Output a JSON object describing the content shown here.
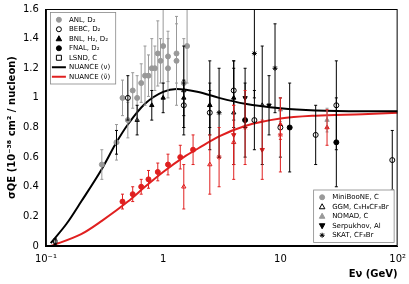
{
  "chart_data": {
    "type": "scatter",
    "x_label": "Eν (GeV)",
    "y_label": "σQE (10⁻³⁸ cm² / nucleon)",
    "log": "x",
    "grid": false,
    "legend": "upper left",
    "xlim": [
      0.1,
      100
    ],
    "xticks": [
      {
        "value": 0.1,
        "label": "10⁻¹"
      },
      1,
      10,
      {
        "value": 100,
        "label": "10²"
      }
    ],
    "ylim": [
      0,
      1.6
    ],
    "yticks": [
      0,
      0.2,
      0.4,
      0.6,
      0.8,
      1,
      1.2,
      1.4,
      1.6
    ],
    "series": [
      {
        "name": "ANL, D₂",
        "color": "#999999",
        "marker": "circle",
        "x": [
          0.3,
          0.4,
          0.5,
          0.6,
          0.7,
          0.8,
          0.9,
          1.0,
          1.1,
          1.3,
          1.5
        ],
        "values": [
          0.55,
          0.7,
          0.85,
          1.0,
          1.15,
          1.2,
          1.3,
          1.35,
          1.2,
          1.25,
          1.1
        ],
        "errors": [
          0.1,
          0.12,
          0.12,
          0.15,
          0.2,
          0.2,
          0.22,
          0.25,
          0.2,
          0.3,
          0.3
        ]
      },
      {
        "name": "BEBC, D₂",
        "color": "#000000",
        "marker": "open_circle",
        "x": [
          0.5,
          1.5,
          2.5,
          4,
          6,
          10,
          20,
          30,
          90
        ],
        "values": [
          1.0,
          0.95,
          0.9,
          1.05,
          0.85,
          0.8,
          0.75,
          0.95,
          0.58
        ],
        "errors": [
          0.15,
          0.15,
          0.15,
          0.2,
          0.2,
          0.2,
          0.2,
          0.3,
          0.2
        ]
      },
      {
        "name": "BNL, H₂, D₂",
        "color": "#000000",
        "marker": "triangle",
        "x": [
          0.4,
          0.6,
          0.8,
          1.0,
          1.5,
          2.5,
          4
        ],
        "values": [
          0.7,
          0.85,
          0.95,
          1.0,
          1.0,
          0.95,
          1.0
        ],
        "errors": [
          0.08,
          0.1,
          0.1,
          0.1,
          0.12,
          0.15,
          0.2
        ]
      },
      {
        "name": "FNAL, D₂",
        "color": "#000000",
        "marker": "circle",
        "x": [
          5,
          12,
          30
        ],
        "values": [
          0.85,
          0.8,
          0.7
        ],
        "errors": [
          0.25,
          0.3,
          0.3
        ]
      },
      {
        "name": "LSND, C",
        "color": "#000000",
        "marker": "open_square",
        "x": [
          0.12
        ],
        "values": [
          0.03
        ],
        "errors": [
          0.02
        ]
      },
      {
        "name": "NUANCE (ν)",
        "color": "#000000",
        "type": "line",
        "line_style": "solid",
        "x": [
          0.11,
          0.15,
          0.2,
          0.3,
          0.4,
          0.5,
          0.7,
          1,
          1.3,
          2,
          3,
          5,
          10,
          20,
          50,
          100
        ],
        "values": [
          0.02,
          0.15,
          0.3,
          0.52,
          0.7,
          0.82,
          0.96,
          1.04,
          1.06,
          1.04,
          1.0,
          0.96,
          0.93,
          0.915,
          0.91,
          0.91
        ]
      },
      {
        "name": "NUANCE (ν̄)",
        "color": "#e02020",
        "type": "line",
        "line_style": "solid",
        "x": [
          0.11,
          0.2,
          0.3,
          0.5,
          0.7,
          1,
          1.5,
          2,
          3,
          5,
          10,
          20,
          50,
          100
        ],
        "values": [
          0.0,
          0.08,
          0.17,
          0.3,
          0.4,
          0.5,
          0.6,
          0.66,
          0.74,
          0.81,
          0.86,
          0.88,
          0.89,
          0.9
        ]
      },
      {
        "name": "MiniBooNE, C",
        "color": "#999999",
        "marker": "circle",
        "x": [
          0.45,
          0.55,
          0.65,
          0.75,
          0.85,
          0.95,
          1.1,
          1.3,
          1.6
        ],
        "values": [
          1.0,
          1.05,
          1.1,
          1.15,
          1.2,
          1.25,
          1.28,
          1.3,
          1.35
        ],
        "errors": [
          0.12,
          0.12,
          0.13,
          0.14,
          0.15,
          0.15,
          0.17,
          0.2,
          0.25
        ]
      },
      {
        "name": "MiniBooNE, C",
        "color": "#e02020",
        "marker": "circle",
        "x": [
          0.45,
          0.55,
          0.65,
          0.75,
          0.9,
          1.1,
          1.4,
          1.8
        ],
        "values": [
          0.3,
          0.35,
          0.4,
          0.45,
          0.5,
          0.55,
          0.6,
          0.65
        ],
        "errors": [
          0.05,
          0.05,
          0.05,
          0.06,
          0.06,
          0.07,
          0.08,
          0.1
        ]
      },
      {
        "name": "GGM, C₃H₈CF₃Br",
        "color": "#000000",
        "marker": "open_triangle",
        "x": [
          1.5,
          2.5,
          4,
          7
        ],
        "values": [
          1.05,
          0.95,
          0.9,
          0.95
        ],
        "errors": [
          0.3,
          0.3,
          0.35,
          0.4
        ]
      },
      {
        "name": "GGM, C₃H₈CF₃Br",
        "color": "#e02020",
        "marker": "open_triangle",
        "x": [
          1.5,
          2.5,
          4
        ],
        "values": [
          0.4,
          0.55,
          0.7
        ],
        "errors": [
          0.15,
          0.2,
          0.25
        ]
      },
      {
        "name": "NOMAD, C",
        "color": "#999999",
        "marker": "triangle",
        "x": [
          10,
          25
        ],
        "values": [
          0.92,
          0.85
        ],
        "errors": [
          0.08,
          0.08
        ]
      },
      {
        "name": "NOMAD, C",
        "color": "#e02020",
        "marker": "triangle",
        "x": [
          10,
          25
        ],
        "values": [
          0.82,
          0.8
        ],
        "errors": [
          0.1,
          0.12
        ]
      },
      {
        "name": "Serpukhov, Al",
        "color": "#000000",
        "marker": "inverted_triangle",
        "x": [
          5,
          8
        ],
        "values": [
          1.0,
          0.95
        ],
        "errors": [
          0.2,
          0.2
        ]
      },
      {
        "name": "Serpukhov, Al",
        "color": "#e02020",
        "marker": "inverted_triangle",
        "x": [
          4,
          7
        ],
        "values": [
          0.75,
          0.65
        ],
        "errors": [
          0.2,
          0.2
        ]
      },
      {
        "name": "SKAT, CF₃Br",
        "color": "#000000",
        "marker": "asterisk",
        "x": [
          3,
          6,
          9
        ],
        "values": [
          0.9,
          1.3,
          1.2
        ],
        "errors": [
          0.3,
          0.3,
          0.3
        ]
      },
      {
        "name": "SKAT, CF₃Br",
        "color": "#e02020",
        "marker": "asterisk",
        "x": [
          3,
          5,
          10
        ],
        "values": [
          0.6,
          0.8,
          0.75
        ],
        "errors": [
          0.2,
          0.25,
          0.25
        ]
      }
    ]
  }
}
